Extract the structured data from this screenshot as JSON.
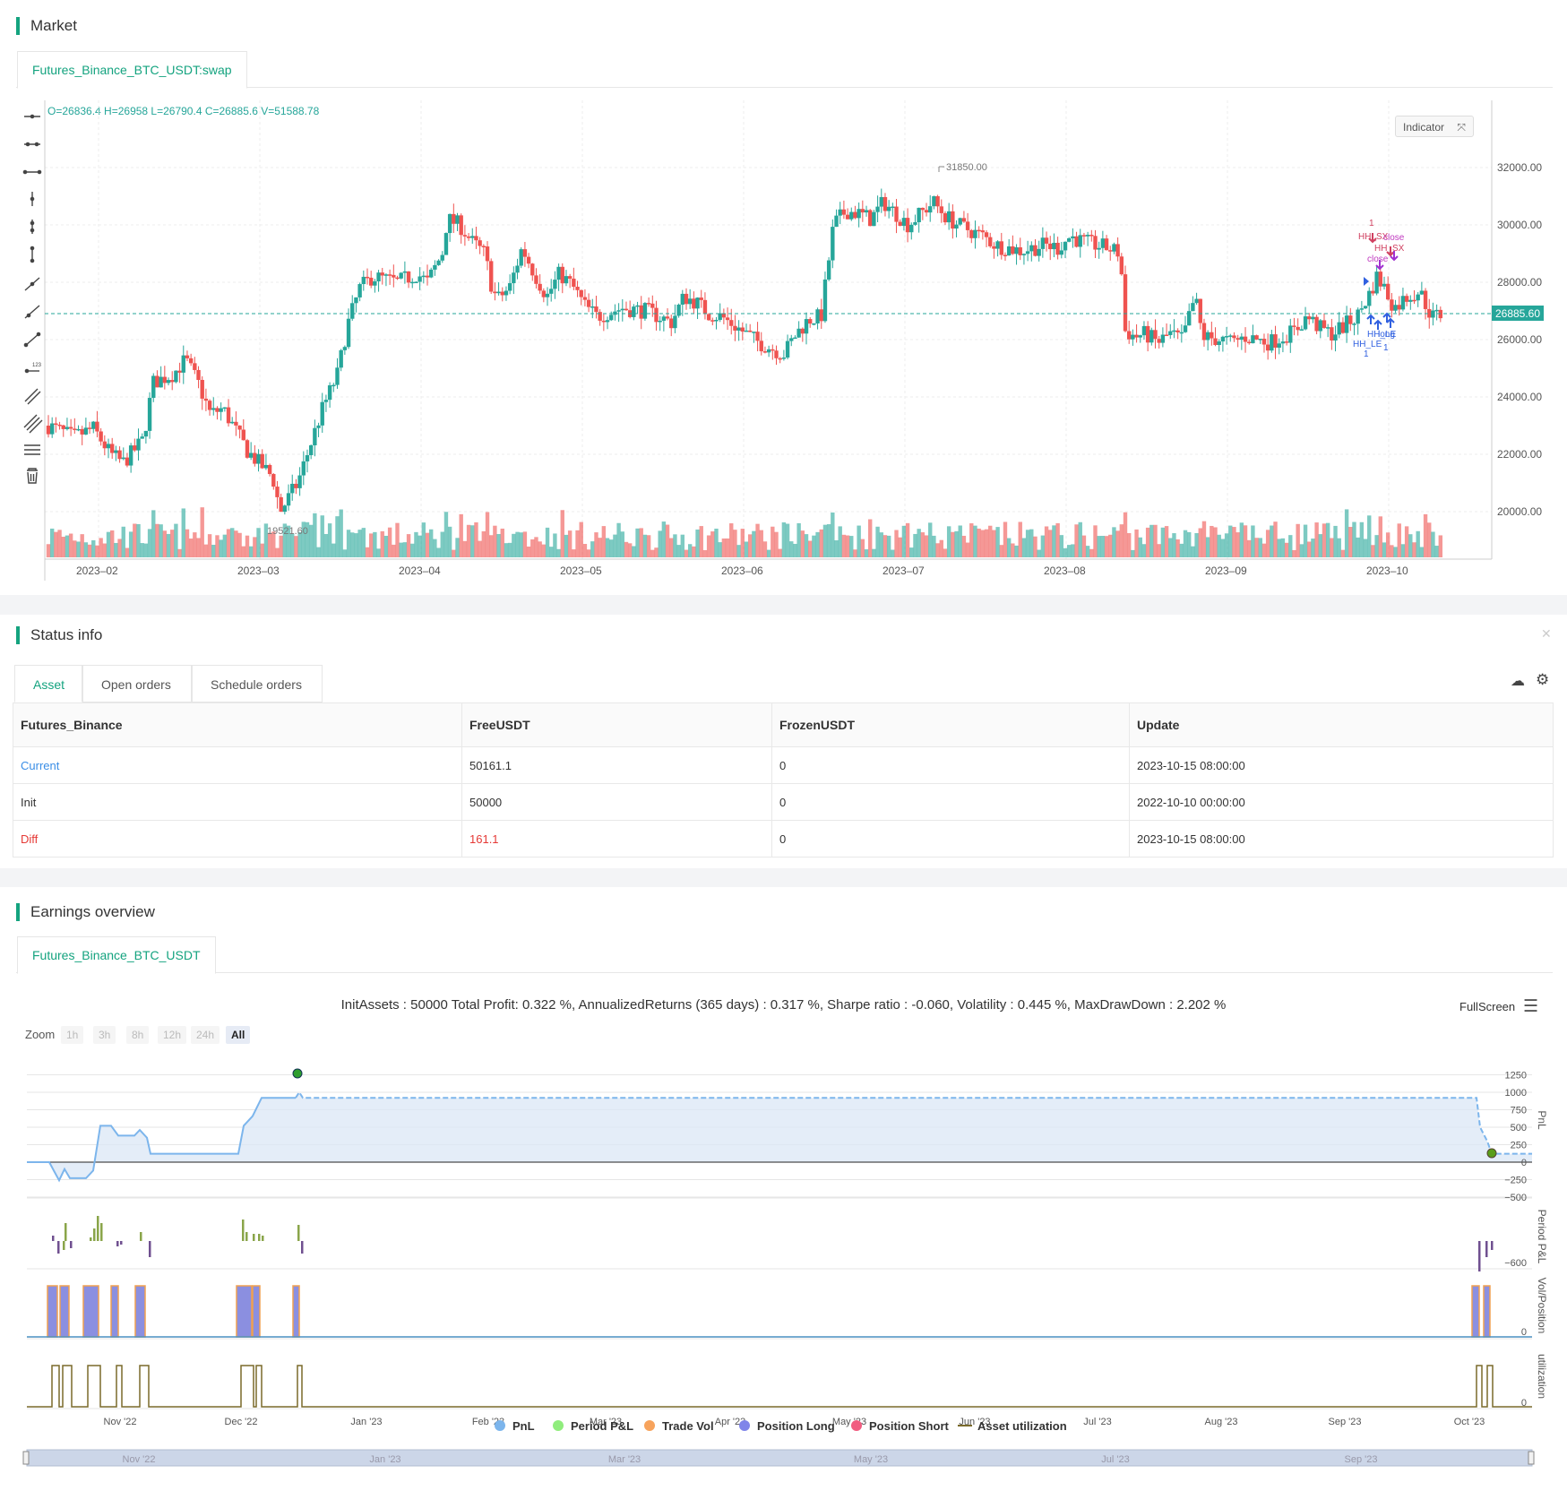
{
  "market": {
    "title": "Market",
    "tab": "Futures_Binance_BTC_USDT:swap",
    "ohlc": "O=26836.4 H=26958 L=26790.4 C=26885.6 V=51588.78",
    "indicator_label": "Indicator",
    "price_ticks": [
      "32000.00",
      "30000.00",
      "28000.00",
      "26000.00",
      "24000.00",
      "22000.00",
      "20000.00"
    ],
    "current_price": "26885.60",
    "high_label": "31850.00",
    "low_label": "19521.60",
    "date_ticks": [
      "2023–02",
      "2023–03",
      "2023–04",
      "2023–05",
      "2023–06",
      "2023–07",
      "2023–08",
      "2023–09",
      "2023–10"
    ],
    "signal_labels": {
      "hh_sx": "HH_SX",
      "close": "close",
      "hh_le": "HH_LE",
      "long": "long",
      "qty": "1"
    },
    "colors": {
      "up": "#26a69a",
      "down": "#ef5350",
      "accent": "#14a37f"
    }
  },
  "status": {
    "title": "Status info",
    "tabs": [
      "Asset",
      "Open orders",
      "Schedule orders"
    ],
    "table": {
      "headers": [
        "Futures_Binance",
        "FreeUSDT",
        "FrozenUSDT",
        "Update"
      ],
      "rows": [
        [
          "Current",
          "50161.1",
          "0",
          "2023-10-15 08:00:00"
        ],
        [
          "Init",
          "50000",
          "0",
          "2022-10-10 00:00:00"
        ],
        [
          "Diff",
          "161.1",
          "0",
          "2023-10-15 08:00:00"
        ]
      ]
    }
  },
  "earnings": {
    "title": "Earnings overview",
    "tab": "Futures_Binance_BTC_USDT",
    "summary": "InitAssets : 50000 Total Profit: 0.322 %, AnnualizedReturns (365 days) : 0.317 %, Sharpe ratio : -0.060, Volatility : 0.445 %, MaxDrawDown : 2.202 %",
    "fullscreen": "FullScreen",
    "zoom_label": "Zoom",
    "zoom_options": [
      "1h",
      "3h",
      "8h",
      "12h",
      "24h",
      "All"
    ],
    "pnl_ticks": [
      "1250",
      "1000",
      "750",
      "500",
      "250",
      "0",
      "−250",
      "−500"
    ],
    "period_tick": "−600",
    "zero_tick": "0",
    "axis_titles": [
      "PnL",
      "Period P&L",
      "Vol/Position",
      "utilization"
    ],
    "date_ticks": [
      "Nov '22",
      "Dec '22",
      "Jan '23",
      "Feb '23",
      "Mar '23",
      "Apr '23",
      "May '23",
      "Jun '23",
      "Jul '23",
      "Aug '23",
      "Sep '23",
      "Oct '23"
    ],
    "legend": [
      "PnL",
      "Period P&L",
      "Trade Vol",
      "Position Long",
      "Position Short",
      "Asset utilization"
    ],
    "navigator_ticks": [
      "Nov '22",
      "Jan '23",
      "Mar '23",
      "May '23",
      "Jul '23",
      "Sep '23"
    ]
  }
}
